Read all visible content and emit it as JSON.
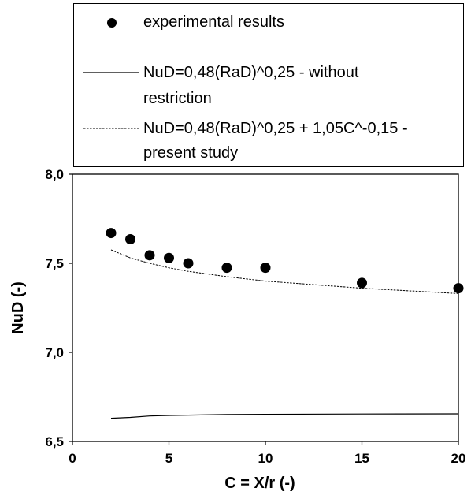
{
  "chart_data": {
    "type": "scatter",
    "xlabel": "C = X/r (-)",
    "ylabel": "NuD (-)",
    "xlim": [
      0,
      20
    ],
    "ylim": [
      6.5,
      8.0
    ],
    "x_ticks": [
      "0",
      "5",
      "10",
      "15",
      "20"
    ],
    "y_ticks": [
      "6,5",
      "7,0",
      "7,5",
      "8,0"
    ],
    "grid": false,
    "legend_position": "top",
    "series": [
      {
        "name": "experimental results",
        "kind": "markers",
        "color": "#000000",
        "x": [
          2,
          3,
          4,
          5,
          6,
          8,
          10,
          15,
          20
        ],
        "y": [
          7.67,
          7.635,
          7.545,
          7.53,
          7.5,
          7.475,
          7.475,
          7.39,
          7.36
        ]
      },
      {
        "name": "NuD=0,48(RaD)^0,25 - without restriction",
        "kind": "solid-line",
        "color": "#000000",
        "x": [
          2,
          3,
          4,
          5,
          6,
          8,
          10,
          15,
          20
        ],
        "y": [
          6.63,
          6.635,
          6.643,
          6.646,
          6.648,
          6.651,
          6.652,
          6.654,
          6.655
        ]
      },
      {
        "name": "NuD=0,48(RaD)^0,25 + 1,05C^-0,15 - present study",
        "kind": "dashed-line",
        "color": "#000000",
        "x": [
          2,
          3,
          4,
          5,
          6,
          8,
          10,
          15,
          20
        ],
        "y": [
          7.575,
          7.53,
          7.5,
          7.475,
          7.455,
          7.425,
          7.4,
          7.36,
          7.33
        ]
      }
    ]
  },
  "legend": {
    "entry1": "experimental results",
    "entry2_line1": "NuD=0,48(RaD)^0,25 - without",
    "entry2_line2": "restriction",
    "entry3_line1": "NuD=0,48(RaD)^0,25 + 1,05C^-0,15 -",
    "entry3_line2": "present study"
  }
}
